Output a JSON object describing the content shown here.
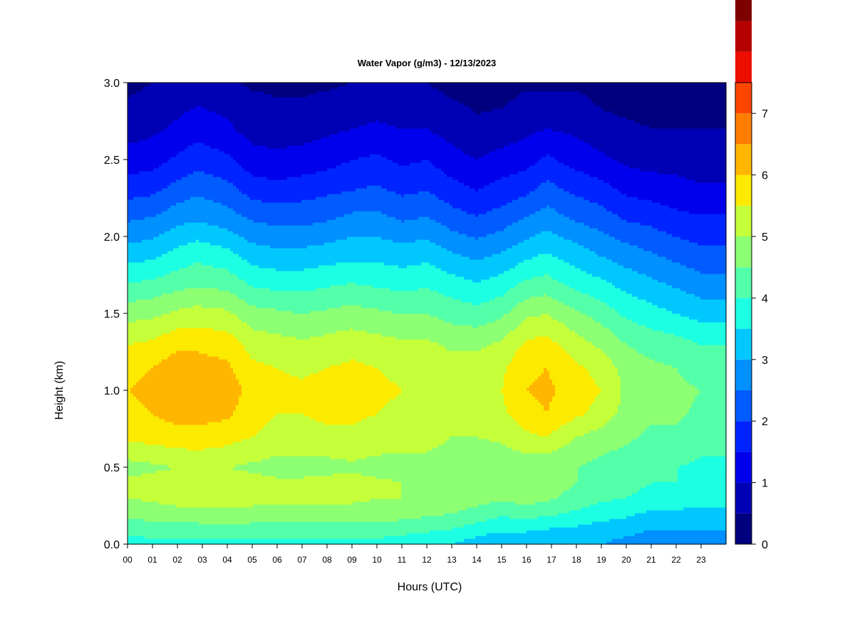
{
  "chart_data": {
    "type": "heatmap",
    "title": "Water Vapor (g/m3) - 12/13/2023",
    "xlabel": "Hours (UTC)",
    "ylabel": "Height (km)",
    "xlim": [
      0,
      24
    ],
    "ylim": [
      0,
      3
    ],
    "x_ticks": [
      "00",
      "01",
      "02",
      "03",
      "04",
      "05",
      "06",
      "07",
      "08",
      "09",
      "10",
      "11",
      "12",
      "13",
      "14",
      "15",
      "16",
      "17",
      "18",
      "19",
      "20",
      "21",
      "22",
      "23"
    ],
    "y_ticks": [
      "0.0",
      "0.5",
      "1.0",
      "1.5",
      "2.0",
      "2.5",
      "3.0"
    ],
    "colorbar": {
      "range": [
        0,
        7.5
      ],
      "step": 0.5,
      "tick_labels": [
        "0",
        "1",
        "2",
        "3",
        "4",
        "5",
        "6",
        "7"
      ],
      "colors": [
        "#00007f",
        "#0000b4",
        "#0000ec",
        "#0024ff",
        "#005cff",
        "#0090ff",
        "#00c8ff",
        "#1cffe2",
        "#54ffaa",
        "#8cff72",
        "#c4ff3a",
        "#fcea00",
        "#ffb600",
        "#ff7e00",
        "#ff4600",
        "#ed0e00",
        "#b50000",
        "#7f0000"
      ]
    },
    "profile_heights_km": [
      0.0,
      0.1,
      0.2,
      0.3,
      0.4,
      0.5,
      0.7,
      0.85,
      1.0,
      1.15,
      1.3,
      1.5,
      1.7,
      1.9,
      2.1,
      2.3,
      2.5,
      2.7,
      2.9,
      3.0
    ],
    "profiles": [
      {
        "hour": 0.0,
        "values": [
          3.7,
          4.2,
          4.6,
          5.0,
          5.1,
          4.8,
          5.6,
          5.9,
          6.0,
          5.9,
          5.5,
          4.8,
          4.0,
          3.2,
          2.5,
          1.8,
          1.2,
          0.8,
          0.5,
          0.4
        ]
      },
      {
        "hour": 1.0,
        "values": [
          3.8,
          4.3,
          4.7,
          5.1,
          5.2,
          4.9,
          5.7,
          6.0,
          6.1,
          6.0,
          5.6,
          4.9,
          4.1,
          3.3,
          2.6,
          1.9,
          1.3,
          0.9,
          0.6,
          0.5
        ]
      },
      {
        "hour": 2.0,
        "values": [
          3.8,
          4.3,
          4.8,
          5.2,
          5.3,
          5.0,
          5.8,
          6.2,
          6.4,
          6.3,
          5.9,
          5.1,
          4.3,
          3.6,
          2.9,
          2.2,
          1.6,
          1.1,
          0.8,
          0.6
        ]
      },
      {
        "hour": 2.8,
        "values": [
          3.8,
          4.3,
          4.8,
          5.2,
          5.4,
          5.1,
          5.8,
          6.2,
          6.3,
          6.2,
          5.9,
          5.2,
          4.4,
          3.8,
          3.0,
          2.4,
          1.8,
          1.3,
          0.9,
          0.7
        ]
      },
      {
        "hour": 4.0,
        "values": [
          3.8,
          4.4,
          4.8,
          5.3,
          5.3,
          5.0,
          5.7,
          6.1,
          6.3,
          6.1,
          5.8,
          5.1,
          4.3,
          3.6,
          2.8,
          2.2,
          1.6,
          1.1,
          0.8,
          0.6
        ]
      },
      {
        "hour": 5.0,
        "values": [
          3.8,
          4.3,
          4.8,
          5.2,
          5.2,
          4.9,
          5.5,
          5.7,
          5.8,
          5.6,
          5.3,
          4.7,
          3.9,
          3.2,
          2.5,
          1.8,
          1.2,
          0.8,
          0.6,
          0.4
        ]
      },
      {
        "hour": 6.0,
        "values": [
          3.8,
          4.3,
          4.8,
          5.1,
          5.1,
          4.8,
          5.3,
          5.5,
          5.6,
          5.5,
          5.2,
          4.6,
          3.8,
          3.1,
          2.4,
          1.7,
          1.1,
          0.8,
          0.5,
          0.4
        ]
      },
      {
        "hour": 7.0,
        "values": [
          3.8,
          4.3,
          4.8,
          5.1,
          5.1,
          4.8,
          5.3,
          5.5,
          5.6,
          5.4,
          5.1,
          4.5,
          3.8,
          3.1,
          2.4,
          1.8,
          1.2,
          0.8,
          0.5,
          0.4
        ]
      },
      {
        "hour": 8.0,
        "values": [
          3.8,
          4.3,
          4.8,
          5.1,
          5.2,
          4.8,
          5.4,
          5.6,
          5.7,
          5.5,
          5.2,
          4.6,
          3.9,
          3.2,
          2.5,
          1.9,
          1.3,
          0.9,
          0.6,
          0.4
        ]
      },
      {
        "hour": 9.0,
        "values": [
          3.8,
          4.3,
          4.8,
          5.1,
          5.2,
          4.9,
          5.4,
          5.6,
          5.7,
          5.6,
          5.3,
          4.7,
          4.0,
          3.3,
          2.7,
          2.0,
          1.5,
          1.0,
          0.7,
          0.5
        ]
      },
      {
        "hour": 10.0,
        "values": [
          3.8,
          4.3,
          4.8,
          5.0,
          5.1,
          4.8,
          5.3,
          5.5,
          5.6,
          5.5,
          5.2,
          4.6,
          3.9,
          3.3,
          2.7,
          2.1,
          1.6,
          1.1,
          0.7,
          0.5
        ]
      },
      {
        "hour": 11.0,
        "values": [
          3.7,
          4.2,
          4.7,
          5.0,
          5.0,
          4.8,
          5.2,
          5.4,
          5.5,
          5.4,
          5.1,
          4.5,
          3.8,
          3.2,
          2.5,
          1.9,
          1.4,
          1.0,
          0.7,
          0.5
        ]
      },
      {
        "hour": 12.0,
        "values": [
          3.6,
          4.1,
          4.6,
          4.9,
          5.0,
          4.8,
          5.2,
          5.4,
          5.5,
          5.4,
          5.1,
          4.5,
          3.9,
          3.3,
          2.6,
          2.0,
          1.5,
          1.0,
          0.7,
          0.5
        ]
      },
      {
        "hour": 13.0,
        "values": [
          3.5,
          4.0,
          4.5,
          4.8,
          4.9,
          4.7,
          5.0,
          5.2,
          5.3,
          5.2,
          4.9,
          4.3,
          3.7,
          3.0,
          2.3,
          1.7,
          1.2,
          0.8,
          0.5,
          0.3
        ]
      },
      {
        "hour": 14.0,
        "values": [
          3.2,
          3.8,
          4.3,
          4.7,
          4.8,
          4.6,
          5.0,
          5.2,
          5.3,
          5.2,
          4.9,
          4.2,
          3.5,
          2.8,
          2.1,
          1.5,
          1.0,
          0.6,
          0.4,
          0.3
        ]
      },
      {
        "hour": 15.0,
        "values": [
          3.0,
          3.6,
          4.1,
          4.6,
          4.7,
          4.6,
          5.1,
          5.4,
          5.5,
          5.4,
          5.1,
          4.4,
          3.7,
          3.0,
          2.3,
          1.7,
          1.2,
          0.7,
          0.4,
          0.3
        ]
      },
      {
        "hour": 16.0,
        "values": [
          3.0,
          3.6,
          4.2,
          4.7,
          4.9,
          4.7,
          5.4,
          5.8,
          6.0,
          5.9,
          5.6,
          4.9,
          4.1,
          3.3,
          2.6,
          1.9,
          1.3,
          0.9,
          0.6,
          0.4
        ]
      },
      {
        "hour": 16.8,
        "values": [
          3.0,
          3.5,
          4.1,
          4.6,
          4.8,
          4.6,
          5.5,
          6.0,
          6.1,
          6.0,
          5.7,
          5.0,
          4.2,
          3.5,
          2.8,
          2.2,
          1.6,
          1.0,
          0.6,
          0.4
        ]
      },
      {
        "hour": 18.0,
        "values": [
          3.0,
          3.4,
          3.9,
          4.3,
          4.5,
          4.5,
          5.0,
          5.6,
          5.8,
          5.6,
          5.2,
          4.6,
          3.8,
          3.2,
          2.5,
          1.9,
          1.3,
          0.9,
          0.6,
          0.4
        ]
      },
      {
        "hour": 19.0,
        "values": [
          3.0,
          3.3,
          3.7,
          4.1,
          4.3,
          4.3,
          4.8,
          5.3,
          5.5,
          5.3,
          4.9,
          4.3,
          3.6,
          2.9,
          2.3,
          1.7,
          1.1,
          0.7,
          0.4,
          0.3
        ]
      },
      {
        "hour": 20.0,
        "values": [
          2.8,
          3.2,
          3.6,
          4.0,
          4.2,
          4.2,
          4.6,
          4.8,
          4.9,
          4.8,
          4.5,
          3.9,
          3.3,
          2.7,
          2.0,
          1.4,
          0.9,
          0.6,
          0.3,
          0.2
        ]
      },
      {
        "hour": 21.0,
        "values": [
          2.6,
          3.0,
          3.4,
          3.8,
          4.0,
          4.0,
          4.4,
          4.6,
          4.7,
          4.6,
          4.3,
          3.7,
          3.1,
          2.5,
          1.9,
          1.3,
          0.8,
          0.5,
          0.3,
          0.2
        ]
      },
      {
        "hour": 22.0,
        "values": [
          2.7,
          3.0,
          3.4,
          3.8,
          4.0,
          4.0,
          4.4,
          4.6,
          4.6,
          4.5,
          4.2,
          3.5,
          2.9,
          2.3,
          1.7,
          1.2,
          0.8,
          0.5,
          0.3,
          0.2
        ]
      },
      {
        "hour": 23.0,
        "values": [
          2.7,
          3.0,
          3.3,
          3.7,
          3.9,
          3.9,
          4.2,
          4.4,
          4.5,
          4.3,
          4.0,
          3.3,
          2.7,
          2.1,
          1.6,
          1.1,
          0.7,
          0.5,
          0.3,
          0.2
        ]
      },
      {
        "hour": 23.9,
        "values": [
          2.7,
          3.0,
          3.3,
          3.7,
          3.9,
          3.9,
          4.2,
          4.4,
          4.5,
          4.3,
          4.0,
          3.3,
          2.7,
          2.1,
          1.6,
          1.1,
          0.7,
          0.5,
          0.3,
          0.2
        ]
      }
    ]
  }
}
